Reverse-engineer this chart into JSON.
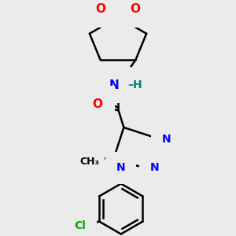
{
  "background_color": "#ebebeb",
  "atom_colors": {
    "C": "#000000",
    "H": "#008080",
    "N": "#0000ff",
    "O": "#ff0000",
    "S": "#cccc00",
    "Cl": "#00aa00"
  },
  "figsize": [
    3.0,
    3.0
  ],
  "dpi": 100
}
